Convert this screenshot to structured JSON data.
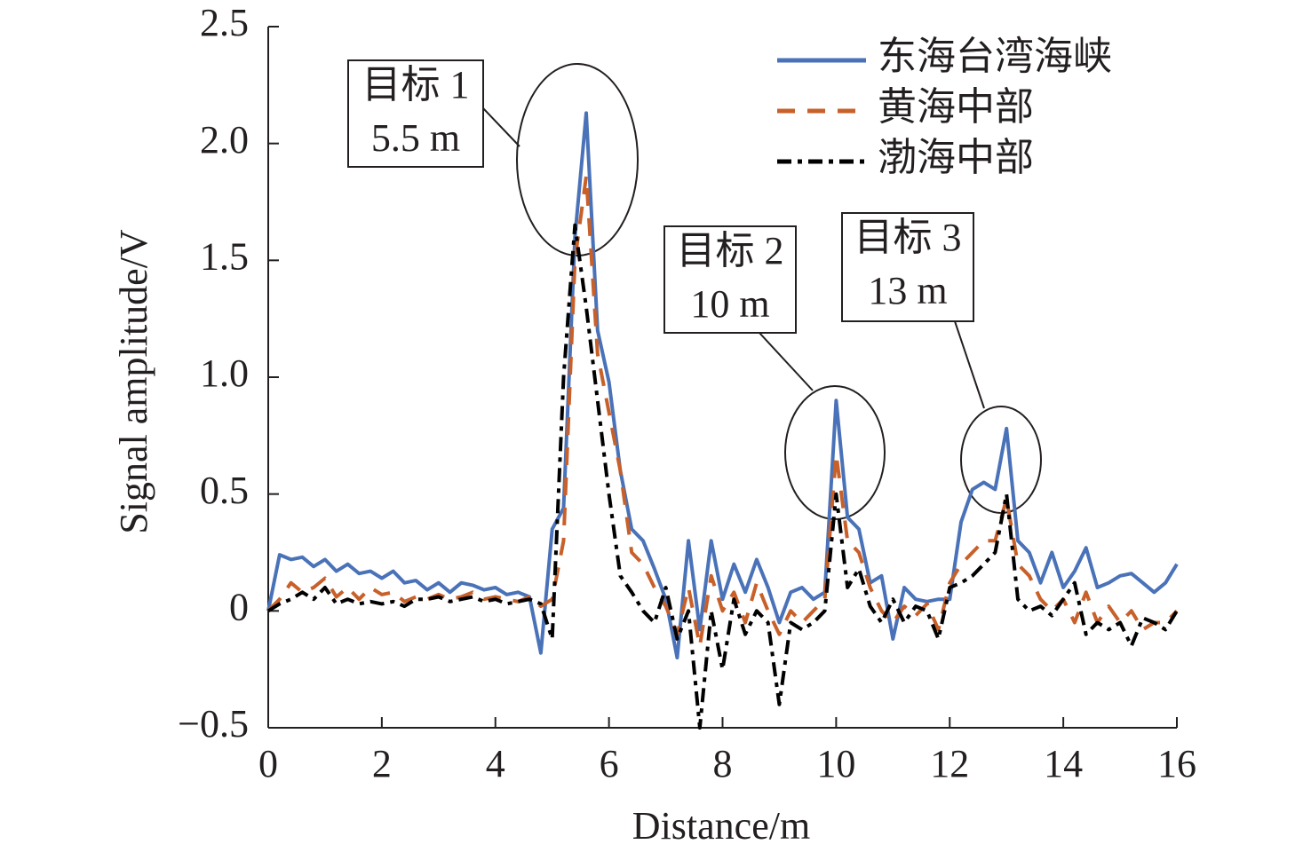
{
  "chart_data": {
    "type": "line",
    "xlabel": "Distance/m",
    "ylabel": "Signal amplitude/V",
    "x": [
      0,
      0.2,
      0.4,
      0.6,
      0.8,
      1,
      1.2,
      1.4,
      1.6,
      1.8,
      2,
      2.2,
      2.4,
      2.6,
      2.8,
      3,
      3.2,
      3.4,
      3.6,
      3.8,
      4,
      4.2,
      4.4,
      4.6,
      4.8,
      5,
      5.2,
      5.4,
      5.6,
      5.8,
      6,
      6.2,
      6.4,
      6.6,
      6.8,
      7,
      7.2,
      7.4,
      7.6,
      7.8,
      8,
      8.2,
      8.4,
      8.6,
      8.8,
      9,
      9.2,
      9.4,
      9.6,
      9.8,
      10,
      10.2,
      10.4,
      10.6,
      10.8,
      11,
      11.2,
      11.4,
      11.6,
      11.8,
      12,
      12.2,
      12.4,
      12.6,
      12.8,
      13,
      13.2,
      13.4,
      13.6,
      13.8,
      14,
      14.2,
      14.4,
      14.6,
      14.8,
      15,
      15.2,
      15.4,
      15.6,
      15.8,
      16
    ],
    "series": [
      {
        "name": "东海台湾海峡",
        "color": "#4a72b8",
        "dash": "solid",
        "values": [
          0,
          0.24,
          0.22,
          0.23,
          0.19,
          0.22,
          0.17,
          0.2,
          0.16,
          0.17,
          0.14,
          0.17,
          0.12,
          0.13,
          0.09,
          0.12,
          0.08,
          0.12,
          0.11,
          0.09,
          0.1,
          0.07,
          0.08,
          0.06,
          -0.18,
          0.35,
          0.44,
          1.6,
          2.13,
          1.2,
          0.98,
          0.6,
          0.35,
          0.3,
          0.18,
          0.05,
          -0.2,
          0.3,
          -0.08,
          0.3,
          0.05,
          0.2,
          0.08,
          0.22,
          0.1,
          -0.05,
          0.08,
          0.1,
          0.05,
          0.08,
          0.9,
          0.4,
          0.35,
          0.12,
          0.15,
          -0.12,
          0.1,
          0.05,
          0.04,
          0.05,
          0.05,
          0.38,
          0.52,
          0.55,
          0.52,
          0.78,
          0.3,
          0.25,
          0.12,
          0.25,
          0.1,
          0.17,
          0.27,
          0.1,
          0.12,
          0.15,
          0.16,
          0.12,
          0.08,
          0.12,
          0.2
        ]
      },
      {
        "name": "黄海中部",
        "color": "#c8602a",
        "dash": "dashed",
        "values": [
          0,
          0.05,
          0.12,
          0.08,
          0.1,
          0.14,
          0.06,
          0.1,
          0.05,
          0.1,
          0.07,
          0.08,
          0.04,
          0.06,
          0.05,
          0.07,
          0.05,
          0.06,
          0.08,
          0.05,
          0.06,
          0.05,
          0.04,
          0.06,
          0.02,
          0.05,
          0.3,
          1.5,
          1.86,
          1.1,
          0.85,
          0.6,
          0.25,
          0.2,
          0.1,
          0.02,
          -0.1,
          0.1,
          -0.15,
          0.15,
          0,
          0.08,
          -0.05,
          0.12,
          0,
          -0.1,
          0,
          -0.05,
          0,
          0.05,
          0.67,
          0.3,
          0.25,
          0.1,
          0,
          -0.05,
          0.02,
          -0.02,
          0.03,
          -0.08,
          0.12,
          0.2,
          0.25,
          0.3,
          0.3,
          0.48,
          0.2,
          0.15,
          0.05,
          0,
          0.05,
          -0.05,
          0.08,
          -0.05,
          0.02,
          -0.05,
          0,
          -0.08,
          -0.05,
          -0.05,
          0
        ]
      },
      {
        "name": "渤海中部",
        "color": "#000000",
        "dash": "dashdot",
        "values": [
          0,
          0.03,
          0.05,
          0.08,
          0.05,
          0.1,
          0.03,
          0.05,
          0.03,
          0.04,
          0.03,
          0.04,
          0.02,
          0.05,
          0.05,
          0.06,
          0.04,
          0.05,
          0.06,
          0.04,
          0.05,
          0.03,
          0.04,
          0.05,
          0.03,
          -0.12,
          1,
          1.65,
          1.3,
          0.9,
          0.5,
          0.15,
          0.08,
          0,
          -0.05,
          0.1,
          -0.12,
          0,
          -0.5,
          0,
          -0.25,
          0.05,
          -0.1,
          0,
          -0.05,
          -0.4,
          -0.05,
          -0.08,
          -0.05,
          0,
          0.5,
          0.1,
          0.18,
          0.02,
          -0.05,
          0.05,
          -0.05,
          0.02,
          0,
          -0.12,
          0.1,
          0.12,
          0.15,
          0.2,
          0.25,
          0.5,
          0.05,
          0,
          0.02,
          -0.02,
          0.05,
          0.12,
          -0.1,
          -0.05,
          -0.08,
          -0.05,
          -0.15,
          -0.03,
          -0.05,
          -0.08,
          0
        ]
      }
    ],
    "xlim": [
      0,
      16
    ],
    "xticks": [
      0,
      2,
      4,
      6,
      8,
      10,
      12,
      14,
      16
    ],
    "ylim": [
      -0.5,
      2.5
    ],
    "yticks": [
      {
        "value": -0.5,
        "label": "−0.5"
      },
      0,
      0.5,
      {
        "value": 1,
        "label": "1.0"
      },
      1.5,
      {
        "value": 2,
        "label": "2.0"
      },
      2.5
    ],
    "legend": "upper right",
    "annotations": [
      {
        "lines": [
          "目标 1",
          "5.5 m"
        ]
      },
      {
        "lines": [
          "目标 2",
          "10 m"
        ]
      },
      {
        "lines": [
          "目标 3",
          "13 m"
        ]
      }
    ]
  }
}
